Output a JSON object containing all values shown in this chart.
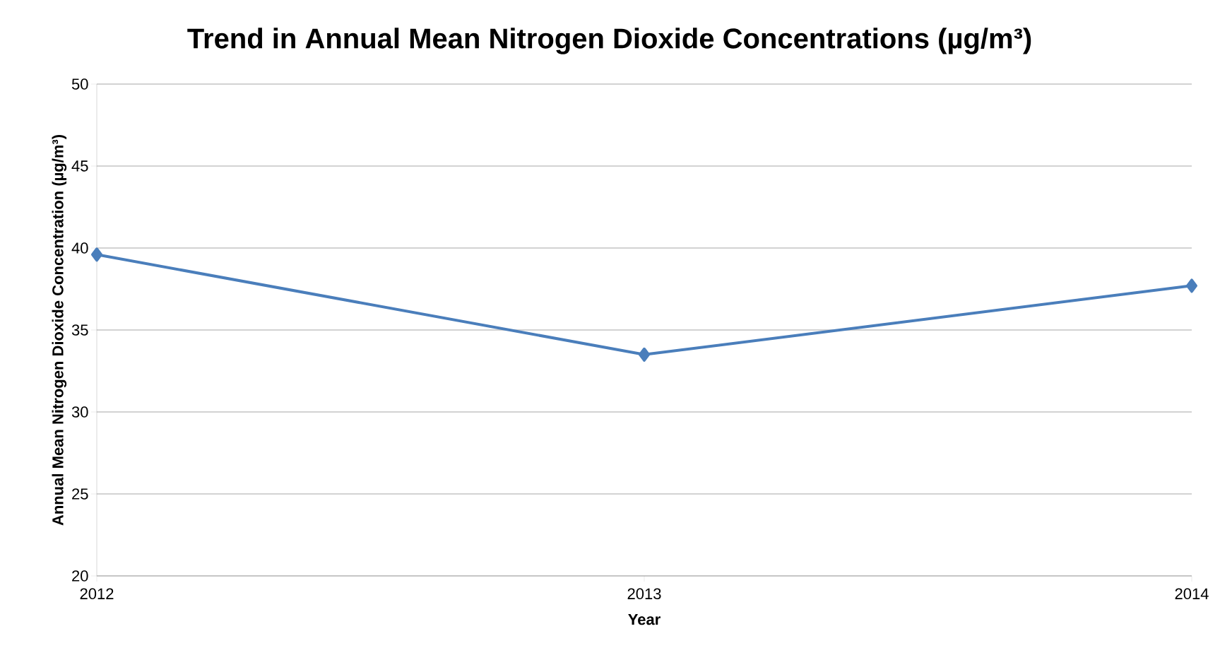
{
  "chart_data": {
    "type": "line",
    "title": "Trend in Annual Mean Nitrogen Dioxide Concentrations (µg/m³)",
    "xlabel": "Year",
    "ylabel": "Annual Mean Nitrogen Dioxide Concentration (µg/m³)",
    "categories": [
      "2012",
      "2013",
      "2014"
    ],
    "values": [
      39.6,
      33.5,
      37.7
    ],
    "color": "#4a7ebb",
    "ylim": [
      20,
      50
    ],
    "yticks": [
      20,
      25,
      30,
      35,
      40,
      45,
      50
    ],
    "grid": "y",
    "marker": "diamond",
    "line_style": "solid"
  }
}
